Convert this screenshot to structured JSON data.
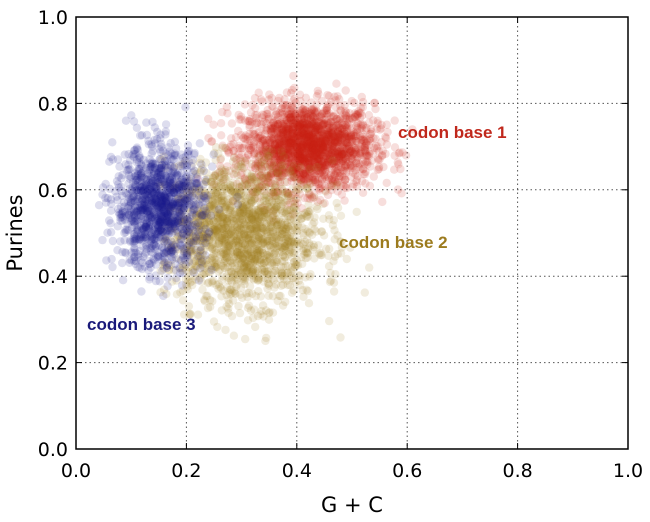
{
  "chart_data": {
    "type": "scatter",
    "xlabel": "G + C",
    "ylabel": "Purines",
    "xlim": [
      0.0,
      1.0
    ],
    "ylim": [
      0.0,
      1.0
    ],
    "x_ticks": [
      "0.0",
      "0.2",
      "0.4",
      "0.6",
      "0.8",
      "1.0"
    ],
    "y_ticks": [
      "0.0",
      "0.2",
      "0.4",
      "0.6",
      "0.8",
      "1.0"
    ],
    "grid": true,
    "grid_style": "dotted",
    "point_alpha": 0.15,
    "series": [
      {
        "name": "codon base 1",
        "color": "#cc1f14",
        "center": [
          0.42,
          0.7
        ],
        "spread": [
          0.06,
          0.05
        ],
        "n_points": 2000,
        "x_range": [
          0.22,
          0.66
        ],
        "y_range": [
          0.5,
          0.9
        ]
      },
      {
        "name": "codon base 2",
        "color": "#a08020",
        "center": [
          0.3,
          0.5
        ],
        "spread": [
          0.07,
          0.08
        ],
        "n_points": 1800,
        "x_range": [
          0.15,
          0.55
        ],
        "y_range": [
          0.15,
          0.7
        ]
      },
      {
        "name": "codon base 3",
        "color": "#1a1a8c",
        "center": [
          0.15,
          0.56
        ],
        "spread": [
          0.04,
          0.07
        ],
        "n_points": 1200,
        "x_range": [
          0.04,
          0.3
        ],
        "y_range": [
          0.35,
          0.8
        ]
      }
    ]
  }
}
